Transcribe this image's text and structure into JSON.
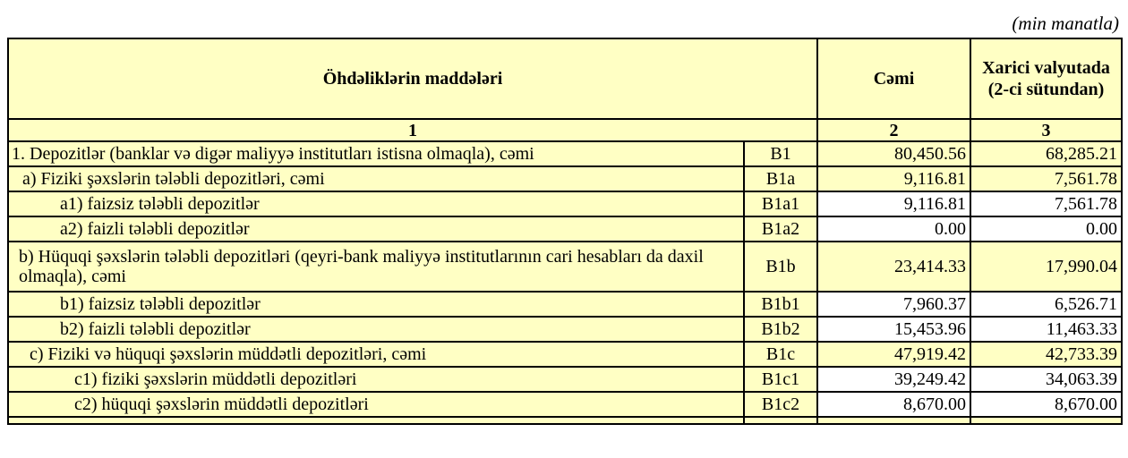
{
  "unit_note": "(min manatla)",
  "header": {
    "col1": "Öhdəliklərin maddələri",
    "col2": "Cəmi",
    "col3": "Xarici valyutada (2-ci sütundan)"
  },
  "col_numbers": [
    "1",
    "2",
    "3"
  ],
  "rows": [
    {
      "label": "1. Depozitlər (banklar və digər maliyyə institutları istisna olmaqla), cəmi",
      "code": "B1",
      "total": "80,450.56",
      "foreign": "68,285.21"
    },
    {
      "label": "a)  Fiziki şəxslərin tələbli depozitləri, cəmi",
      "code": "B1a",
      "total": "9,116.81",
      "foreign": "7,561.78"
    },
    {
      "label": "a1) faizsiz tələbli depozitlər",
      "code": "B1a1",
      "total": "9,116.81",
      "foreign": "7,561.78"
    },
    {
      "label": "a2) faizli tələbli depozitlər",
      "code": "B1a2",
      "total": "0.00",
      "foreign": "0.00"
    },
    {
      "label": "b) Hüquqi şəxslərin tələbli depozitləri (qeyri-bank maliyyə institutlarının cari hesabları da daxil olmaqla), cəmi",
      "code": "B1b",
      "total": "23,414.33",
      "foreign": "17,990.04"
    },
    {
      "label": "b1) faizsiz tələbli depozitlər",
      "code": "B1b1",
      "total": "7,960.37",
      "foreign": "6,526.71"
    },
    {
      "label": "b2) faizli tələbli depozitlər",
      "code": "B1b2",
      "total": "15,453.96",
      "foreign": "11,463.33"
    },
    {
      "label": "c) Fiziki və hüquqi şəxslərin müddətli depozitləri, cəmi",
      "code": "B1c",
      "total": "47,919.42",
      "foreign": "42,733.39"
    },
    {
      "label": "c1) fiziki şəxslərin müddətli depozitləri",
      "code": "B1c1",
      "total": "39,249.42",
      "foreign": "34,063.39"
    },
    {
      "label": "c2) hüquqi şəxslərin müddətli depozitləri",
      "code": "B1c2",
      "total": "8,670.00",
      "foreign": "8,670.00"
    }
  ],
  "colors": {
    "cell_fill": "#ffffc4",
    "border": "#000000"
  }
}
